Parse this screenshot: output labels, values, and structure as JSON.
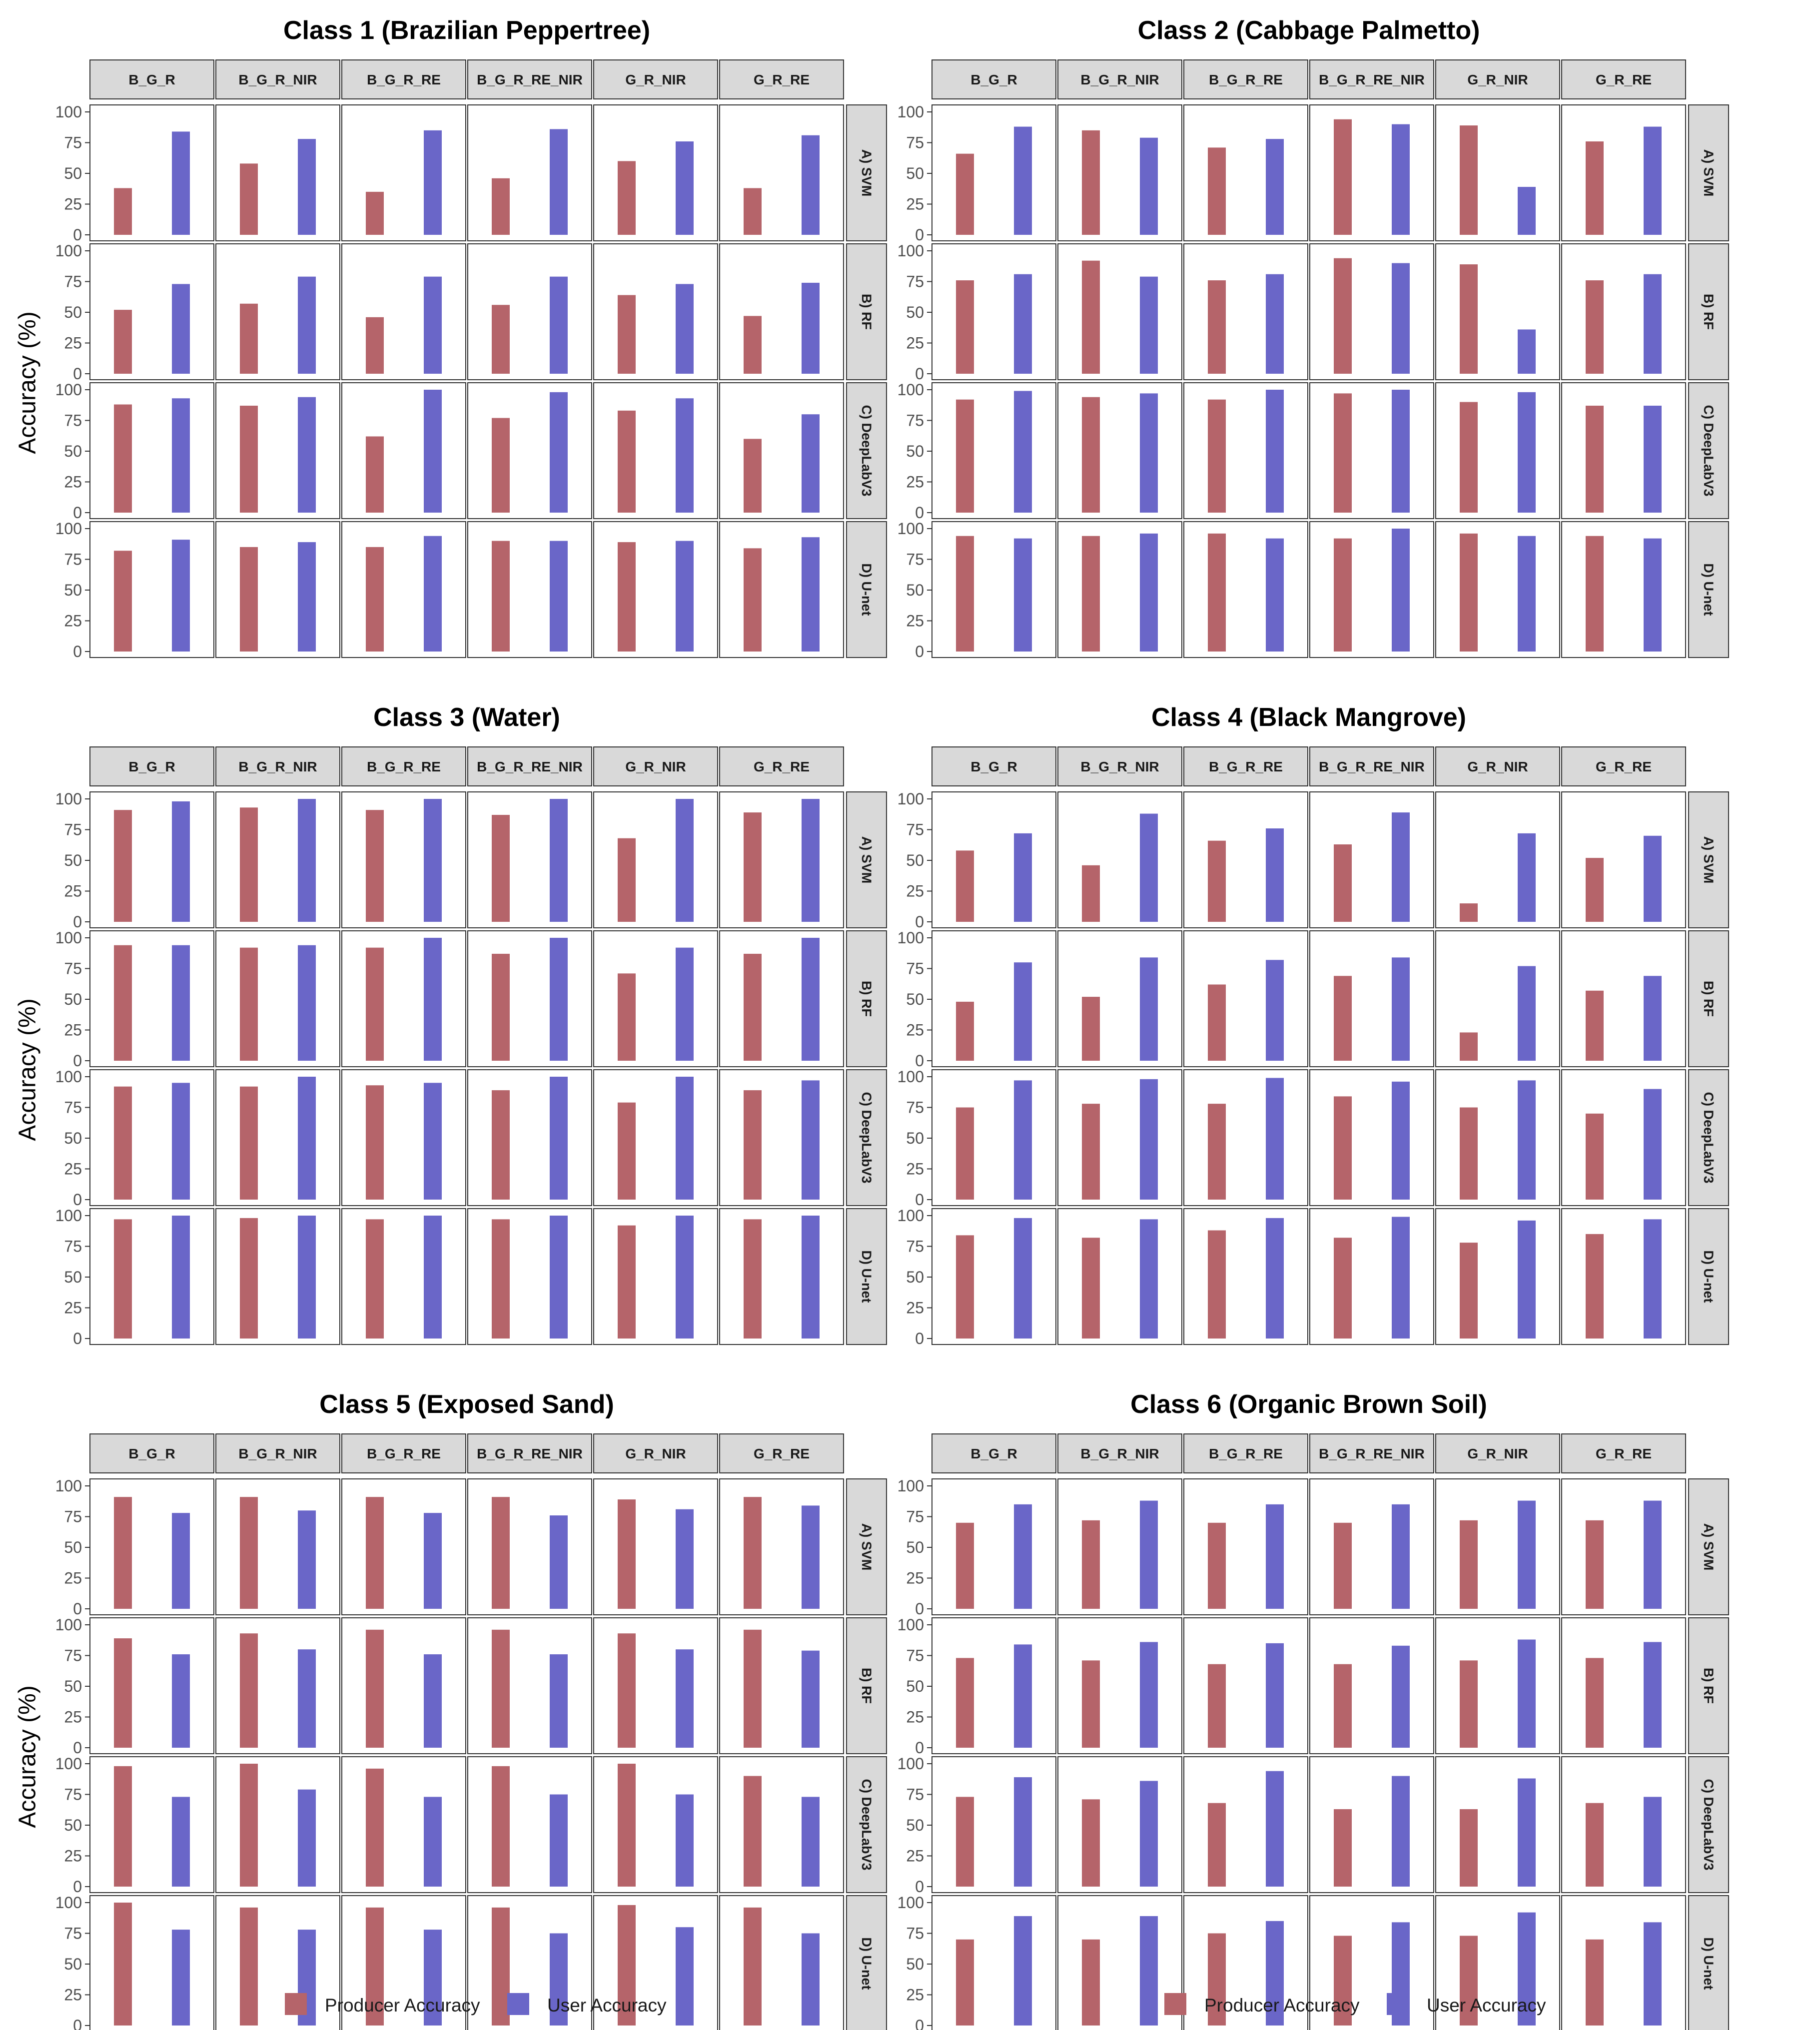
{
  "colors": {
    "producer": "#b5646a",
    "user": "#6a66c8",
    "strip_fill": "#d9d9d9",
    "panel_border": "#333333"
  },
  "legend": {
    "producer_label": "Producer Accuracy",
    "user_label": "User Accuracy"
  },
  "chart_data": [
    {
      "type": "bar",
      "title": "Class 1 (Brazilian Peppertree)",
      "ylabel": "Accuracy (%)",
      "ylim": [
        0,
        100
      ],
      "yticks": [
        0,
        25,
        50,
        75,
        100
      ],
      "band_combinations": [
        "B_G_R",
        "B_G_R_NIR",
        "B_G_R_RE",
        "B_G_R_RE_NIR",
        "G_R_NIR",
        "G_R_RE"
      ],
      "models": [
        "A) SVM",
        "B) RF",
        "C) DeepLabV3",
        "D) U-net"
      ],
      "series": [
        {
          "name": "Producer Accuracy",
          "values": [
            [
              38,
              58,
              35,
              46,
              60,
              38
            ],
            [
              52,
              57,
              46,
              56,
              64,
              47
            ],
            [
              88,
              87,
              62,
              77,
              83,
              60
            ],
            [
              82,
              85,
              85,
              90,
              89,
              84
            ]
          ]
        },
        {
          "name": "User Accuracy",
          "values": [
            [
              84,
              78,
              85,
              86,
              76,
              81
            ],
            [
              73,
              79,
              79,
              79,
              73,
              74
            ],
            [
              93,
              94,
              100,
              98,
              93,
              80
            ],
            [
              91,
              89,
              94,
              90,
              90,
              93
            ]
          ]
        }
      ]
    },
    {
      "type": "bar",
      "title": "Class 2 (Cabbage Palmetto)",
      "ylabel": "Accuracy (%)",
      "ylim": [
        0,
        100
      ],
      "yticks": [
        0,
        25,
        50,
        75,
        100
      ],
      "band_combinations": [
        "B_G_R",
        "B_G_R_NIR",
        "B_G_R_RE",
        "B_G_R_RE_NIR",
        "G_R_NIR",
        "G_R_RE"
      ],
      "models": [
        "A) SVM",
        "B) RF",
        "C) DeepLabV3",
        "D) U-net"
      ],
      "series": [
        {
          "name": "Producer Accuracy",
          "values": [
            [
              66,
              85,
              71,
              94,
              89,
              76
            ],
            [
              76,
              92,
              76,
              94,
              89,
              76
            ],
            [
              92,
              94,
              92,
              97,
              90,
              87
            ],
            [
              94,
              94,
              96,
              92,
              96,
              94
            ]
          ]
        },
        {
          "name": "User Accuracy",
          "values": [
            [
              88,
              79,
              78,
              90,
              39,
              88
            ],
            [
              81,
              79,
              81,
              90,
              36,
              81
            ],
            [
              99,
              97,
              100,
              100,
              98,
              87
            ],
            [
              92,
              96,
              92,
              100,
              94,
              92
            ]
          ]
        }
      ]
    },
    {
      "type": "bar",
      "title": "Class 3 (Water)",
      "ylabel": "Accuracy (%)",
      "ylim": [
        0,
        100
      ],
      "yticks": [
        0,
        25,
        50,
        75,
        100
      ],
      "band_combinations": [
        "B_G_R",
        "B_G_R_NIR",
        "B_G_R_RE",
        "B_G_R_RE_NIR",
        "G_R_NIR",
        "G_R_RE"
      ],
      "models": [
        "A) SVM",
        "B) RF",
        "C) DeepLabV3",
        "D) U-net"
      ],
      "series": [
        {
          "name": "Producer Accuracy",
          "values": [
            [
              91,
              93,
              91,
              87,
              68,
              89
            ],
            [
              94,
              92,
              92,
              87,
              71,
              87
            ],
            [
              92,
              92,
              93,
              89,
              79,
              89
            ],
            [
              97,
              98,
              97,
              97,
              92,
              97
            ]
          ]
        },
        {
          "name": "User Accuracy",
          "values": [
            [
              98,
              100,
              100,
              100,
              100,
              100
            ],
            [
              94,
              94,
              100,
              100,
              92,
              100
            ],
            [
              95,
              100,
              95,
              100,
              100,
              97
            ],
            [
              100,
              100,
              100,
              100,
              100,
              100
            ]
          ]
        }
      ]
    },
    {
      "type": "bar",
      "title": "Class 4 (Black Mangrove)",
      "ylabel": "Accuracy (%)",
      "ylim": [
        0,
        100
      ],
      "yticks": [
        0,
        25,
        50,
        75,
        100
      ],
      "band_combinations": [
        "B_G_R",
        "B_G_R_NIR",
        "B_G_R_RE",
        "B_G_R_RE_NIR",
        "G_R_NIR",
        "G_R_RE"
      ],
      "models": [
        "A) SVM",
        "B) RF",
        "C) DeepLabV3",
        "D) U-net"
      ],
      "series": [
        {
          "name": "Producer Accuracy",
          "values": [
            [
              58,
              46,
              66,
              63,
              15,
              52
            ],
            [
              48,
              52,
              62,
              69,
              23,
              57
            ],
            [
              75,
              78,
              78,
              84,
              75,
              70
            ],
            [
              84,
              82,
              88,
              82,
              78,
              85
            ]
          ]
        },
        {
          "name": "User Accuracy",
          "values": [
            [
              72,
              88,
              76,
              89,
              72,
              70
            ],
            [
              80,
              84,
              82,
              84,
              77,
              69
            ],
            [
              97,
              98,
              99,
              96,
              97,
              90
            ],
            [
              98,
              97,
              98,
              99,
              96,
              97
            ]
          ]
        }
      ]
    },
    {
      "type": "bar",
      "title": "Class 5 (Exposed Sand)",
      "ylabel": "Accuracy (%)",
      "ylim": [
        0,
        100
      ],
      "yticks": [
        0,
        25,
        50,
        75,
        100
      ],
      "band_combinations": [
        "B_G_R",
        "B_G_R_NIR",
        "B_G_R_RE",
        "B_G_R_RE_NIR",
        "G_R_NIR",
        "G_R_RE"
      ],
      "models": [
        "A) SVM",
        "B) RF",
        "C) DeepLabV3",
        "D) U-net"
      ],
      "series": [
        {
          "name": "Producer Accuracy",
          "values": [
            [
              91,
              91,
              91,
              91,
              89,
              91
            ],
            [
              89,
              93,
              96,
              96,
              93,
              96
            ],
            [
              98,
              100,
              96,
              98,
              100,
              90
            ],
            [
              100,
              96,
              96,
              96,
              98,
              96
            ]
          ]
        },
        {
          "name": "User Accuracy",
          "values": [
            [
              78,
              80,
              78,
              76,
              81,
              84
            ],
            [
              76,
              80,
              76,
              76,
              80,
              79
            ],
            [
              73,
              79,
              73,
              75,
              75,
              73
            ],
            [
              78,
              78,
              78,
              75,
              80,
              75
            ]
          ]
        }
      ]
    },
    {
      "type": "bar",
      "title": "Class 6 (Organic Brown Soil)",
      "ylabel": "Accuracy (%)",
      "ylim": [
        0,
        100
      ],
      "yticks": [
        0,
        25,
        50,
        75,
        100
      ],
      "band_combinations": [
        "B_G_R",
        "B_G_R_NIR",
        "B_G_R_RE",
        "B_G_R_RE_NIR",
        "G_R_NIR",
        "G_R_RE"
      ],
      "models": [
        "A) SVM",
        "B) RF",
        "C) DeepLabV3",
        "D) U-net"
      ],
      "series": [
        {
          "name": "Producer Accuracy",
          "values": [
            [
              70,
              72,
              70,
              70,
              72,
              72
            ],
            [
              73,
              71,
              68,
              68,
              71,
              73
            ],
            [
              73,
              71,
              68,
              63,
              63,
              68
            ],
            [
              70,
              70,
              75,
              73,
              73,
              70
            ]
          ]
        },
        {
          "name": "User Accuracy",
          "values": [
            [
              85,
              88,
              85,
              85,
              88,
              88
            ],
            [
              84,
              86,
              85,
              83,
              88,
              86
            ],
            [
              89,
              86,
              94,
              90,
              88,
              73
            ],
            [
              89,
              89,
              85,
              84,
              92,
              84
            ]
          ]
        }
      ]
    }
  ]
}
